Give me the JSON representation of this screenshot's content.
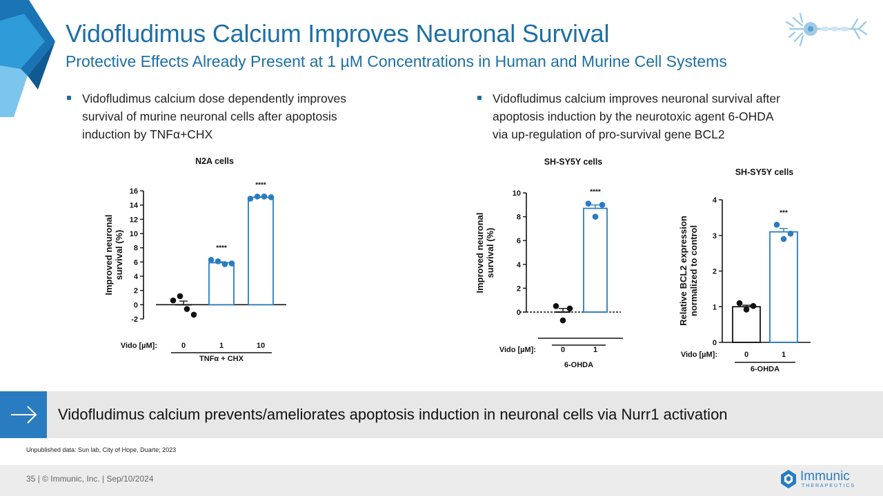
{
  "slide": {
    "title": "Vidofludimus Calcium Improves Neuronal Survival",
    "subtitle": "Protective Effects Already Present at 1 µM Concentrations in Human and Murine Cell Systems",
    "bullet_left": [
      "Vidofludimus calcium dose dependently improves",
      "survival of murine neuronal cells after apoptosis",
      "induction by TNFα+CHX"
    ],
    "bullet_right": [
      "Vidofludimus calcium improves neuronal survival after",
      "apoptosis induction by the neurotoxic agent 6-OHDA",
      "via up-regulation of pro-survival gene BCL2"
    ],
    "banner_text": "Vidofludimus calcium prevents/ameliorates apoptosis induction in neuronal cells via Nurr1 activation",
    "source": "Unpublished data: Sun lab, City of Hope, Duarte; 2023",
    "footer": "35   |  © Immunic, Inc.   | Sep/10/2024",
    "logo_name": "Immunic",
    "logo_sub": "THERAPEUTICS",
    "accent_color": "#1d6fa5",
    "bar_color": "#2a7cc0",
    "icons": [
      "neuron-icon",
      "arrow-right-icon",
      "immunic-logo-icon"
    ]
  },
  "chart_data": [
    {
      "type": "bar",
      "title": "N2A cells",
      "ylabel": [
        "Improved neuronal",
        "survival (%)"
      ],
      "xlabel_prefix": "Vido [µM]:",
      "categories": [
        "0",
        "1",
        "10"
      ],
      "values": [
        0,
        5.9,
        15.1
      ],
      "points": [
        [
          0.6,
          1.2,
          -0.6,
          -1.4
        ],
        [
          6.3,
          6.1,
          5.7,
          5.8
        ],
        [
          14.9,
          15.2,
          15.2,
          15.1
        ]
      ],
      "significance": [
        "",
        "****",
        "****"
      ],
      "group_label": "TNFα + CHX",
      "ylim": [
        -2,
        16
      ],
      "yticks": [
        -2,
        0,
        2,
        4,
        6,
        8,
        10,
        12,
        14,
        16
      ]
    },
    {
      "type": "bar",
      "title": "SH-SY5Y cells",
      "ylabel": [
        "Improved neuronal",
        "survival (%)"
      ],
      "xlabel_prefix": "Vido [µM]:",
      "categories": [
        "0",
        "1"
      ],
      "values": [
        0,
        8.7
      ],
      "points": [
        [
          0.5,
          -0.7,
          0.3
        ],
        [
          9.1,
          8.0,
          9.0
        ]
      ],
      "significance": [
        "",
        "****"
      ],
      "group_label": "6-OHDA",
      "ylim": [
        0,
        10
      ],
      "yticks": [
        0,
        2,
        4,
        6,
        8,
        10
      ]
    },
    {
      "type": "bar",
      "title": "SH-SY5Y cells",
      "ylabel": [
        "Relative BCL2 expression",
        "normalized to control"
      ],
      "xlabel_prefix": "Vido [µM]:",
      "categories": [
        "0",
        "1"
      ],
      "values": [
        1.0,
        3.1
      ],
      "points": [
        [
          1.1,
          0.92,
          1.02
        ],
        [
          3.3,
          2.9,
          3.05
        ]
      ],
      "significance": [
        "",
        "***"
      ],
      "group_label": "6-OHDA",
      "ylim": [
        0,
        4
      ],
      "yticks": [
        0,
        1,
        2,
        3,
        4
      ]
    }
  ]
}
